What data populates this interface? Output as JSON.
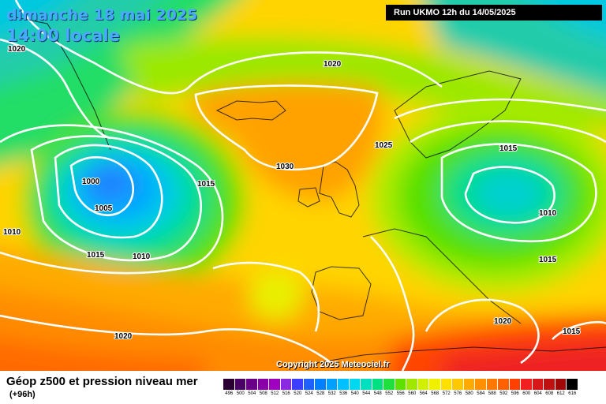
{
  "header": {
    "date_line": "dimanche 18 mai 2025",
    "time_line": "14:00 locale",
    "run_info": "Run UKMO 12h du 14/05/2025"
  },
  "map": {
    "copyright": "Copyright 2025 Meteociel.fr",
    "isobars": [
      {
        "label": "1020"
      },
      {
        "label": "1020"
      },
      {
        "label": "1025"
      },
      {
        "label": "1030"
      },
      {
        "label": "1000"
      },
      {
        "label": "1005"
      },
      {
        "label": "1015"
      },
      {
        "label": "1010"
      },
      {
        "label": "1015"
      },
      {
        "label": "1010"
      },
      {
        "label": "1015"
      },
      {
        "label": "1010"
      },
      {
        "label": "1015"
      },
      {
        "label": "1020"
      },
      {
        "label": "1015"
      },
      {
        "label": "1020"
      }
    ]
  },
  "legend": {
    "title": "Géop z500 et pression niveau mer",
    "subtitle": "(+96h)",
    "scale_values": [
      "496",
      "500",
      "504",
      "508",
      "512",
      "516",
      "520",
      "524",
      "528",
      "532",
      "536",
      "540",
      "544",
      "548",
      "552",
      "556",
      "560",
      "564",
      "568",
      "572",
      "576",
      "580",
      "584",
      "588",
      "592",
      "596",
      "600",
      "604",
      "608",
      "612",
      "616"
    ],
    "scale_colors": [
      "#2a0033",
      "#4b0066",
      "#6a0088",
      "#8a00a8",
      "#a000c0",
      "#8a2be2",
      "#3d3dff",
      "#2060ff",
      "#0080ff",
      "#00a0ff",
      "#00c0ff",
      "#00d8f0",
      "#00e0c0",
      "#00e080",
      "#20e040",
      "#60e000",
      "#a0e800",
      "#d0f000",
      "#f0f000",
      "#ffe000",
      "#ffc800",
      "#ffaa00",
      "#ff9000",
      "#ff7800",
      "#ff6000",
      "#ff4000",
      "#f02020",
      "#d81818",
      "#c01010",
      "#a00808",
      "#000000"
    ]
  }
}
